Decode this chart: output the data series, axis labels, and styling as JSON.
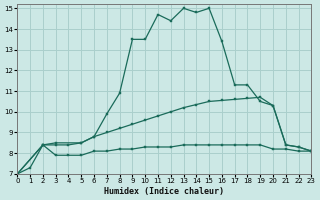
{
  "xlabel": "Humidex (Indice chaleur)",
  "xlim": [
    0,
    23
  ],
  "ylim": [
    7,
    15.2
  ],
  "yticks": [
    7,
    8,
    9,
    10,
    11,
    12,
    13,
    14,
    15
  ],
  "xticks": [
    0,
    1,
    2,
    3,
    4,
    5,
    6,
    7,
    8,
    9,
    10,
    11,
    12,
    13,
    14,
    15,
    16,
    17,
    18,
    19,
    20,
    21,
    22,
    23
  ],
  "background_color": "#cce8e5",
  "grid_color": "#aacfcc",
  "line_color": "#1a6b5a",
  "line1_x": [
    0,
    1,
    2,
    3,
    4,
    5,
    6,
    7,
    8,
    9,
    10,
    11,
    12,
    13,
    14,
    15,
    16,
    17,
    18,
    19,
    20,
    21,
    22,
    23
  ],
  "line1_y": [
    7.0,
    7.3,
    8.4,
    8.4,
    8.4,
    8.5,
    8.8,
    9.9,
    10.9,
    13.5,
    13.5,
    14.7,
    14.4,
    15.0,
    14.8,
    15.0,
    13.4,
    11.3,
    11.3,
    10.5,
    10.3,
    8.4,
    8.3,
    8.1
  ],
  "line2_x": [
    0,
    2,
    3,
    5,
    6,
    7,
    8,
    9,
    10,
    11,
    12,
    13,
    14,
    15,
    16,
    17,
    18,
    19,
    20,
    21,
    22,
    23
  ],
  "line2_y": [
    7.0,
    8.4,
    8.5,
    8.5,
    8.8,
    9.0,
    9.2,
    9.4,
    9.6,
    9.8,
    10.0,
    10.2,
    10.35,
    10.5,
    10.55,
    10.6,
    10.65,
    10.7,
    10.3,
    8.4,
    8.3,
    8.1
  ],
  "line3_x": [
    0,
    2,
    3,
    4,
    5,
    6,
    7,
    8,
    9,
    10,
    11,
    12,
    13,
    14,
    15,
    16,
    17,
    18,
    19,
    20,
    21,
    22,
    23
  ],
  "line3_y": [
    7.0,
    8.4,
    7.9,
    7.9,
    7.9,
    8.1,
    8.1,
    8.2,
    8.2,
    8.3,
    8.3,
    8.3,
    8.4,
    8.4,
    8.4,
    8.4,
    8.4,
    8.4,
    8.4,
    8.2,
    8.2,
    8.1,
    8.1
  ]
}
